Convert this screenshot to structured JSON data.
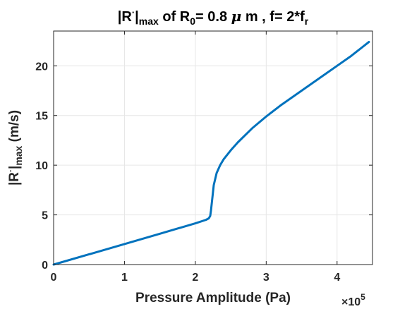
{
  "chart_data": {
    "type": "line",
    "title_parts": [
      "|R",
      "·",
      "|",
      "max",
      " of R",
      "0",
      "= 0.8 ",
      "μ",
      " m , f= 2*f",
      "r"
    ],
    "xlabel": "Pressure Amplitude (Pa)",
    "ylabel_parts": [
      "|R",
      "·",
      "|",
      "max",
      " (m/s)"
    ],
    "x_multiplier": [
      "×10",
      "5"
    ],
    "xlim": [
      0,
      4.5
    ],
    "ylim": [
      0,
      23.5
    ],
    "xticks": [
      "0",
      "1",
      "2",
      "3",
      "4"
    ],
    "yticks": [
      "0",
      "5",
      "10",
      "15",
      "20"
    ],
    "grid": true,
    "series": [
      {
        "color": "#0072BD",
        "x": [
          0,
          0.5,
          1.0,
          1.5,
          2.0,
          2.15,
          2.19,
          2.21,
          2.22,
          2.24,
          2.26,
          2.3,
          2.35,
          2.4,
          2.5,
          2.6,
          2.8,
          3.0,
          3.2,
          3.5,
          3.8,
          4.0,
          4.2,
          4.45
        ],
        "y": [
          0,
          1.03,
          2.06,
          3.1,
          4.15,
          4.5,
          4.65,
          4.9,
          5.4,
          6.7,
          8.0,
          9.2,
          10.0,
          10.6,
          11.5,
          12.3,
          13.7,
          14.9,
          16.0,
          17.5,
          19.0,
          20.0,
          21.0,
          22.4
        ]
      }
    ]
  }
}
